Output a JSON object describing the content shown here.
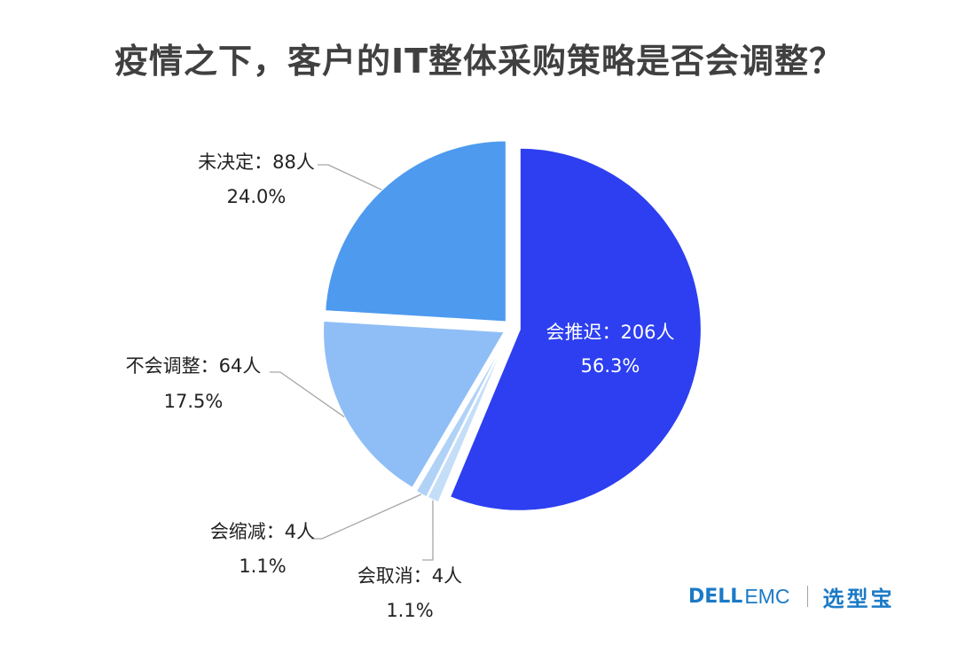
{
  "chart_data": {
    "type": "pie",
    "title": "疫情之下，客户的IT整体采购策略是否会调整？",
    "unit": "人",
    "slices": [
      {
        "label": "会推迟：206人",
        "name": "会推迟",
        "value": 206,
        "percent_text": "56.3%",
        "color": "#2d3ff0"
      },
      {
        "label": "会取消：4人",
        "name": "会取消",
        "value": 4,
        "percent_text": "1.1%",
        "color": "#c5def8"
      },
      {
        "label": "会缩减：4人",
        "name": "会缩减",
        "value": 4,
        "percent_text": "1.1%",
        "color": "#b1d2f7"
      },
      {
        "label": "不会调整：64人",
        "name": "不会调整",
        "value": 64,
        "percent_text": "17.5%",
        "color": "#8fbef6"
      },
      {
        "label": "未决定：88人",
        "name": "未决定",
        "value": 88,
        "percent_text": "24.0%",
        "color": "#4d9aef"
      }
    ],
    "start_angle_deg": 0,
    "direction": "clockwise",
    "exploded": true,
    "legend": "none"
  },
  "branding": {
    "dell": "DELL",
    "emc": "EMC",
    "xuanxingbao": "选型宝"
  },
  "colors": {
    "title": "#404040",
    "label_text": "#222222",
    "label_text_inner": "#ffffff",
    "leader_line": "#a6a6a6",
    "brand": "#1a7ac7"
  }
}
